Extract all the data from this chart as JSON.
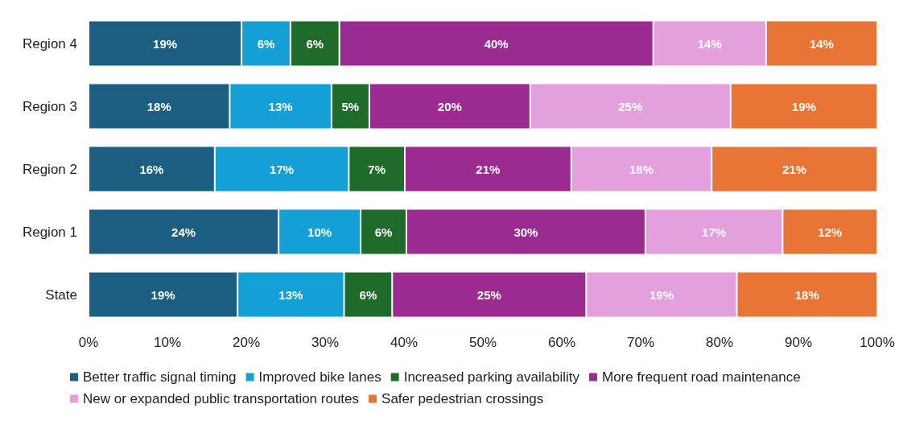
{
  "chart_data": {
    "type": "bar",
    "orientation": "horizontal",
    "stacked": true,
    "categories": [
      "Region 4",
      "Region 3",
      "Region 2",
      "Region 1",
      "State"
    ],
    "series": [
      {
        "name": "Better traffic signal timing",
        "color": "#1b5e82",
        "values": [
          19.4,
          17.9,
          16.0,
          24.1,
          18.9
        ],
        "value_labels": [
          "19%",
          "18%",
          "16%",
          "24%",
          "19%"
        ]
      },
      {
        "name": "Improved bike lanes",
        "color": "#14a0d6",
        "values": [
          6.2,
          12.9,
          17.0,
          10.4,
          13.5
        ],
        "value_labels": [
          "6%",
          "13%",
          "17%",
          "10%",
          "13%"
        ]
      },
      {
        "name": "Increased parking availability",
        "color": "#1e6b2a",
        "values": [
          6.2,
          4.8,
          7.1,
          5.8,
          6.1
        ],
        "value_labels": [
          "6%",
          "5%",
          "7%",
          "6%",
          "6%"
        ]
      },
      {
        "name": "More frequent road maintenance",
        "color": "#9c2b91",
        "values": [
          39.8,
          20.4,
          21.1,
          30.3,
          24.6
        ],
        "value_labels": [
          "40%",
          "20%",
          "21%",
          "30%",
          "25%"
        ]
      },
      {
        "name": "New or expanded public transportation routes",
        "color": "#e49fdd",
        "values": [
          14.3,
          25.4,
          17.8,
          17.4,
          19.1
        ],
        "value_labels": [
          "14%",
          "25%",
          "18%",
          "17%",
          "19%"
        ]
      },
      {
        "name": "Safer pedestrian crossings",
        "color": "#e87535",
        "values": [
          14.1,
          18.6,
          21.0,
          12.0,
          17.8
        ],
        "value_labels": [
          "14%",
          "19%",
          "21%",
          "12%",
          "18%"
        ]
      }
    ],
    "xlim": [
      0,
      100
    ],
    "xticks": [
      {
        "value": 0,
        "label": "0%"
      },
      {
        "value": 10,
        "label": "10%"
      },
      {
        "value": 20,
        "label": "20%"
      },
      {
        "value": 30,
        "label": "30%"
      },
      {
        "value": 40,
        "label": "40%"
      },
      {
        "value": 50,
        "label": "50%"
      },
      {
        "value": 60,
        "label": "60%"
      },
      {
        "value": 70,
        "label": "70%"
      },
      {
        "value": 80,
        "label": "80%"
      },
      {
        "value": 90,
        "label": "90%"
      },
      {
        "value": 100,
        "label": "100%"
      }
    ],
    "grid": false,
    "legend": "bottom"
  }
}
